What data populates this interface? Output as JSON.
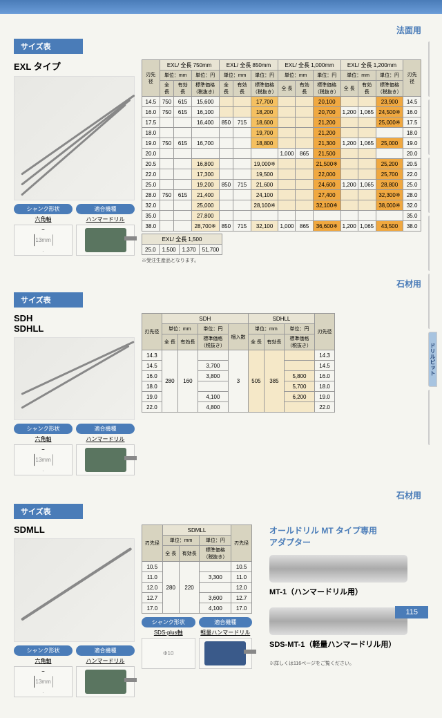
{
  "top": {
    "category1": "法面用",
    "category2": "石材用",
    "category3": "石材用"
  },
  "labels": {
    "size_table": "サイズ表",
    "shank": "シャンク形状",
    "tool": "適合機種",
    "hexshaft": "六角軸",
    "hammer": "ハンマードリル",
    "sdsplus": "SDS-plus軸",
    "lighthammer": "軽量ハンマードリル",
    "dia": "刃先径",
    "unit_mm": "単位：mm",
    "unit_yen": "単位：円",
    "full_len": "全 長",
    "eff_len": "有効長",
    "price": "標準価格\n（税抜き）",
    "qty": "梱入数",
    "note1": "※受注生産品となります。",
    "hex13": "13mm",
    "phi10": "Φ10",
    "note2": "※詳しくは116ページをご覧ください。"
  },
  "exl": {
    "title": "EXL タイプ",
    "headers": [
      "EXL/ 全長 750mm",
      "EXL/ 全長 850mm",
      "EXL/ 全長 1,000mm",
      "EXL/ 全長 1,200mm"
    ],
    "extra_header": "EXL/ 全長 1,500",
    "rows": [
      {
        "d": "14.5",
        "l750": "750",
        "e750": "615",
        "p750": "15,600",
        "l850": "",
        "e850": "",
        "p850": "17,700",
        "l1000": "",
        "e1000": "",
        "p1000": "20,100",
        "l1200": "",
        "e1200": "",
        "p1200": "23,900",
        "d2": "14.5",
        "hl": [
          "",
          "",
          "",
          "",
          "cream",
          "cream",
          "hl-yellow",
          "cream",
          "cream",
          "hl-orange",
          "cream",
          "cream",
          "hl-orange",
          ""
        ]
      },
      {
        "d": "16.0",
        "l750": "750",
        "e750": "615",
        "p750": "16,100",
        "l850": "",
        "e850": "",
        "p850": "18,200",
        "l1000": "",
        "e1000": "",
        "p1000": "20,700",
        "l1200": "1,200",
        "e1200": "1,065",
        "p1200": "24,500※",
        "d2": "16.0",
        "hl": [
          "",
          "",
          "",
          "",
          "cream",
          "cream",
          "hl-yellow",
          "cream",
          "cream",
          "hl-orange",
          "",
          "",
          "hl-orange",
          ""
        ]
      },
      {
        "d": "17.5",
        "l750": "",
        "e750": "",
        "p750": "16,400",
        "l850": "850",
        "e850": "715",
        "p850": "18,600",
        "l1000": "",
        "e1000": "",
        "p1000": "21,200",
        "l1200": "",
        "e1200": "",
        "p1200": "25,000※",
        "d2": "17.5",
        "hl": [
          "",
          "",
          "",
          "",
          "",
          "",
          "hl-yellow",
          "cream",
          "cream",
          "hl-orange",
          "cream",
          "cream",
          "hl-orange",
          ""
        ]
      },
      {
        "d": "18.0",
        "l750": "",
        "e750": "",
        "p750": "",
        "l850": "",
        "e850": "",
        "p850": "19,700",
        "l1000": "",
        "e1000": "",
        "p1000": "21,200",
        "l1200": "",
        "e1200": "",
        "p1200": "",
        "d2": "18.0",
        "hl": [
          "",
          "",
          "",
          "",
          "",
          "",
          "hl-yellow",
          "cream",
          "cream",
          "hl-orange",
          "cream",
          "cream",
          "",
          ""
        ]
      },
      {
        "d": "19.0",
        "l750": "750",
        "e750": "615",
        "p750": "16,700",
        "l850": "",
        "e850": "",
        "p850": "18,800",
        "l1000": "",
        "e1000": "",
        "p1000": "21,300",
        "l1200": "1,200",
        "e1200": "1,065",
        "p1200": "25,000",
        "d2": "19.0",
        "hl": [
          "",
          "",
          "",
          "",
          "",
          "",
          "hl-yellow",
          "cream",
          "cream",
          "hl-orange",
          "",
          "",
          "hl-orange",
          ""
        ]
      },
      {
        "d": "20.0",
        "l750": "",
        "e750": "",
        "p750": "",
        "l850": "",
        "e850": "",
        "p850": "",
        "l1000": "1,000",
        "e1000": "865",
        "p1000": "21,500",
        "l1200": "",
        "e1200": "",
        "p1200": "",
        "d2": "20.0",
        "hl": [
          "",
          "",
          "",
          "",
          "",
          "",
          "",
          "",
          "",
          "hl-orange",
          "cream",
          "cream",
          "",
          ""
        ]
      },
      {
        "d": "20.5",
        "l750": "",
        "e750": "",
        "p750": "16,800",
        "l850": "",
        "e850": "",
        "p850": "19,000※",
        "l1000": "",
        "e1000": "",
        "p1000": "21,500※",
        "l1200": "",
        "e1200": "",
        "p1200": "25,200",
        "d2": "20.5",
        "hl": [
          "",
          "",
          "",
          "cream",
          "",
          "",
          "cream",
          "cream",
          "cream",
          "hl-orange",
          "cream",
          "cream",
          "hl-orange",
          ""
        ]
      },
      {
        "d": "22.0",
        "l750": "",
        "e750": "",
        "p750": "17,300",
        "l850": "",
        "e850": "",
        "p850": "19,500",
        "l1000": "",
        "e1000": "",
        "p1000": "22,000",
        "l1200": "",
        "e1200": "",
        "p1200": "25,700",
        "d2": "22.0",
        "hl": [
          "",
          "",
          "",
          "cream",
          "",
          "",
          "cream",
          "cream",
          "cream",
          "hl-orange",
          "cream",
          "cream",
          "hl-orange",
          ""
        ]
      },
      {
        "d": "25.0",
        "l750": "",
        "e750": "",
        "p750": "19,200",
        "l850": "850",
        "e850": "715",
        "p850": "21,600",
        "l1000": "",
        "e1000": "",
        "p1000": "24,600",
        "l1200": "1,200",
        "e1200": "1,065",
        "p1200": "28,800",
        "d2": "25.0",
        "hl": [
          "",
          "",
          "",
          "cream",
          "",
          "",
          "cream",
          "cream",
          "cream",
          "hl-orange",
          "",
          "",
          "hl-orange",
          ""
        ]
      },
      {
        "d": "28.0",
        "l750": "750",
        "e750": "615",
        "p750": "21,400",
        "l850": "",
        "e850": "",
        "p850": "24,100",
        "l1000": "",
        "e1000": "",
        "p1000": "27,400",
        "l1200": "",
        "e1200": "",
        "p1200": "32,300※",
        "d2": "28.0",
        "hl": [
          "",
          "",
          "",
          "cream",
          "",
          "",
          "cream",
          "cream",
          "cream",
          "hl-orange",
          "cream",
          "cream",
          "hl-orange",
          ""
        ]
      },
      {
        "d": "32.0",
        "l750": "",
        "e750": "",
        "p750": "25,000",
        "l850": "",
        "e850": "",
        "p850": "28,100※",
        "l1000": "",
        "e1000": "",
        "p1000": "32,100※",
        "l1200": "",
        "e1200": "",
        "p1200": "38,000※",
        "d2": "32.0",
        "hl": [
          "",
          "",
          "",
          "cream",
          "",
          "",
          "cream",
          "cream",
          "cream",
          "hl-orange",
          "cream",
          "cream",
          "hl-orange",
          ""
        ]
      },
      {
        "d": "35.0",
        "l750": "",
        "e750": "",
        "p750": "27,800",
        "l850": "",
        "e850": "",
        "p850": "",
        "l1000": "",
        "e1000": "",
        "p1000": "",
        "l1200": "",
        "e1200": "",
        "p1200": "",
        "d2": "35.0",
        "hl": [
          "",
          "",
          "",
          "cream",
          "",
          "",
          "",
          "",
          "",
          "",
          "",
          "",
          "",
          ""
        ]
      },
      {
        "d": "38.0",
        "l750": "",
        "e750": "",
        "p750": "28,700※",
        "l850": "850",
        "e850": "715",
        "p850": "32,100",
        "l1000": "1,000",
        "e1000": "865",
        "p1000": "36,600※",
        "l1200": "1,200",
        "e1200": "1,065",
        "p1200": "43,500",
        "d2": "38.0",
        "hl": [
          "",
          "",
          "",
          "cream",
          "",
          "",
          "cream",
          "",
          "",
          "hl-orange",
          "",
          "",
          "hl-orange",
          ""
        ]
      }
    ],
    "extra_row": {
      "d": "25.0",
      "l": "1,500",
      "e": "1,370",
      "p": "51,700"
    }
  },
  "sdh": {
    "title": "SDH\nSDHLL",
    "h1": "SDH",
    "h2": "SDHLL",
    "rows": [
      {
        "d": "14.3",
        "p1": "",
        "p2": "",
        "d2": "14.3"
      },
      {
        "d": "14.5",
        "p1": "3,700",
        "p2": "",
        "d2": "14.5"
      },
      {
        "d": "16.0",
        "p1": "3,800",
        "p2": "5,800",
        "d2": "16.0"
      },
      {
        "d": "18.0",
        "p1": "",
        "p2": "5,700",
        "d2": "18.0"
      },
      {
        "d": "19.0",
        "p1": "4,100",
        "p2": "6,200",
        "d2": "19.0"
      },
      {
        "d": "22.0",
        "p1": "4,800",
        "p2": "",
        "d2": "22.0"
      }
    ],
    "len1": "280",
    "eff1": "160",
    "qty": "3",
    "len2": "505",
    "eff2": "385"
  },
  "sdmll": {
    "title": "SDMLL",
    "h": "SDMLL",
    "rows": [
      {
        "d": "10.5",
        "p": "",
        "d2": "10.5"
      },
      {
        "d": "11.0",
        "p": "3,300",
        "d2": "11.0"
      },
      {
        "d": "12.0",
        "p": "",
        "d2": "12.0"
      },
      {
        "d": "12.7",
        "p": "3,600",
        "d2": "12.7"
      },
      {
        "d": "17.0",
        "p": "4,100",
        "d2": "17.0"
      }
    ],
    "len": "280",
    "eff": "220"
  },
  "adapter": {
    "title": "オールドリル MT タイプ専用\nアダプター",
    "item1": "MT-1（ハンマードリル用）",
    "item2": "SDS-MT-1（軽量ハンマードリル用）"
  },
  "sidetabs": [
    "",
    "",
    "",
    "",
    "",
    "ドリルビット",
    ""
  ],
  "pagenum": "115"
}
